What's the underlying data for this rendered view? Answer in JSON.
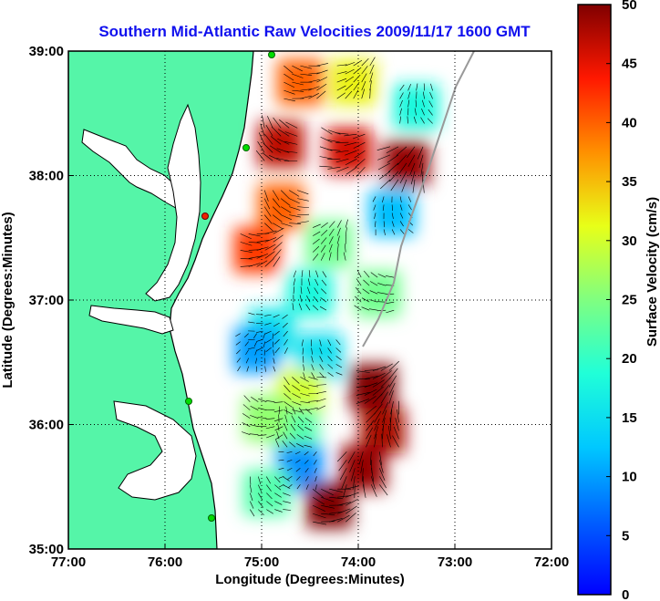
{
  "chart_data": {
    "type": "heatmap",
    "title": "Southern Mid-Atlantic Raw Velocities 2009/11/17 1600 GMT",
    "xlabel": "Longitude (Degrees:Minutes)",
    "ylabel": "Latitude (Degrees:Minutes)",
    "colorbar_label": "Surface Velocity (cm/s)",
    "x_ticks": [
      {
        "value": -77,
        "label": "77:00"
      },
      {
        "value": -76,
        "label": "76:00"
      },
      {
        "value": -75,
        "label": "75:00"
      },
      {
        "value": -74,
        "label": "74:00"
      },
      {
        "value": -73,
        "label": "73:00"
      },
      {
        "value": -72,
        "label": "72:00"
      }
    ],
    "y_ticks": [
      {
        "value": 35,
        "label": "35:00"
      },
      {
        "value": 36,
        "label": "36:00"
      },
      {
        "value": 37,
        "label": "37:00"
      },
      {
        "value": 38,
        "label": "38:00"
      },
      {
        "value": 39,
        "label": "39:00"
      }
    ],
    "colorbar_ticks": [
      {
        "value": 0,
        "label": "0"
      },
      {
        "value": 5,
        "label": "5"
      },
      {
        "value": 10,
        "label": "10"
      },
      {
        "value": 15,
        "label": "15"
      },
      {
        "value": 20,
        "label": "20"
      },
      {
        "value": 25,
        "label": "25"
      },
      {
        "value": 30,
        "label": "30"
      },
      {
        "value": 35,
        "label": "35"
      },
      {
        "value": 40,
        "label": "40"
      },
      {
        "value": 45,
        "label": "45"
      },
      {
        "value": 50,
        "label": "50"
      }
    ],
    "xlim": [
      -77,
      -72
    ],
    "ylim": [
      35,
      39
    ],
    "clim": [
      0,
      50
    ],
    "grid": true,
    "colormap": "jet",
    "colors": {
      "title": "#1010ee",
      "land": "#55f5a8",
      "arrows": "#000000",
      "stations": "#00dd00",
      "station_inactive": "#ee2200"
    },
    "velocity_regions": [
      {
        "lon": -74.6,
        "lat": 38.75,
        "speed": 40
      },
      {
        "lon": -74.05,
        "lat": 38.75,
        "speed": 32
      },
      {
        "lon": -73.4,
        "lat": 38.55,
        "speed": 18
      },
      {
        "lon": -74.8,
        "lat": 38.25,
        "speed": 47
      },
      {
        "lon": -74.1,
        "lat": 38.2,
        "speed": 46
      },
      {
        "lon": -73.5,
        "lat": 38.1,
        "speed": 49
      },
      {
        "lon": -73.65,
        "lat": 37.7,
        "speed": 12
      },
      {
        "lon": -74.8,
        "lat": 37.75,
        "speed": 40
      },
      {
        "lon": -75.05,
        "lat": 37.4,
        "speed": 42
      },
      {
        "lon": -74.3,
        "lat": 37.45,
        "speed": 24
      },
      {
        "lon": -74.5,
        "lat": 37.05,
        "speed": 18
      },
      {
        "lon": -73.8,
        "lat": 37.05,
        "speed": 24
      },
      {
        "lon": -74.9,
        "lat": 36.75,
        "speed": 16
      },
      {
        "lon": -75.05,
        "lat": 36.6,
        "speed": 10
      },
      {
        "lon": -74.4,
        "lat": 36.55,
        "speed": 15
      },
      {
        "lon": -74.6,
        "lat": 36.25,
        "speed": 30
      },
      {
        "lon": -73.85,
        "lat": 36.3,
        "speed": 50
      },
      {
        "lon": -73.75,
        "lat": 35.95,
        "speed": 48
      },
      {
        "lon": -74.65,
        "lat": 35.95,
        "speed": 22
      },
      {
        "lon": -74.95,
        "lat": 36.05,
        "speed": 26
      },
      {
        "lon": -74.6,
        "lat": 35.65,
        "speed": 9
      },
      {
        "lon": -73.95,
        "lat": 35.65,
        "speed": 49
      },
      {
        "lon": -74.95,
        "lat": 35.45,
        "speed": 22
      },
      {
        "lon": -74.3,
        "lat": 35.35,
        "speed": 50
      }
    ]
  }
}
